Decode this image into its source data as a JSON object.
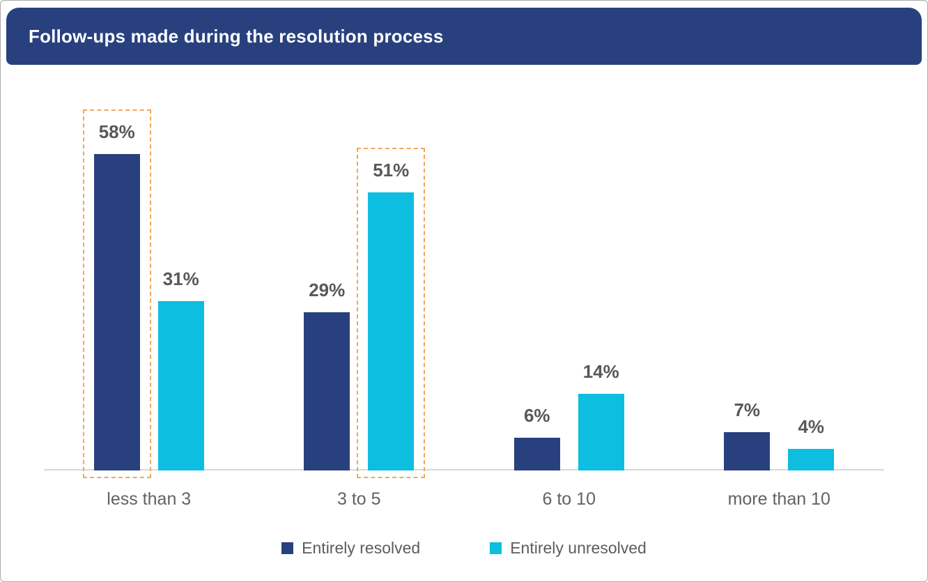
{
  "header": {
    "title": "Follow-ups made during the resolution process"
  },
  "colors": {
    "banner": "#28417e",
    "resolved": "#28417e",
    "unresolved": "#0dbee0",
    "highlight_border": "#f1a75c",
    "axis_line": "#d9d9d9",
    "value_label_text": "#57585a",
    "category_text": "#606264",
    "legend_text": "#5b5c5e",
    "page_border": "#a9a9a9"
  },
  "chart_data": {
    "type": "bar",
    "title": "Follow-ups made during the resolution process",
    "categories": [
      "less than 3",
      "3 to 5",
      "6 to 10",
      "more than 10"
    ],
    "series": [
      {
        "name": "Entirely resolved",
        "color": "#28417e",
        "values": [
          58,
          29,
          6,
          7
        ]
      },
      {
        "name": "Entirely unresolved",
        "color": "#0dbee0",
        "values": [
          31,
          51,
          14,
          4
        ]
      }
    ],
    "value_suffix": "%",
    "value_labels": [
      [
        "58%",
        "29%",
        "6%",
        "7%"
      ],
      [
        "31%",
        "51%",
        "14%",
        "4%"
      ]
    ],
    "highlighted": [
      {
        "category": "less than 3",
        "series": "Entirely resolved"
      },
      {
        "category": "3 to 5",
        "series": "Entirely unresolved"
      }
    ],
    "xlabel": "",
    "ylabel": "",
    "ylim": [
      0,
      60
    ],
    "grid": false,
    "legend_position": "bottom"
  },
  "legend": {
    "items": [
      {
        "label": "Entirely resolved",
        "color": "#28417e"
      },
      {
        "label": "Entirely unresolved",
        "color": "#0dbee0"
      }
    ]
  }
}
